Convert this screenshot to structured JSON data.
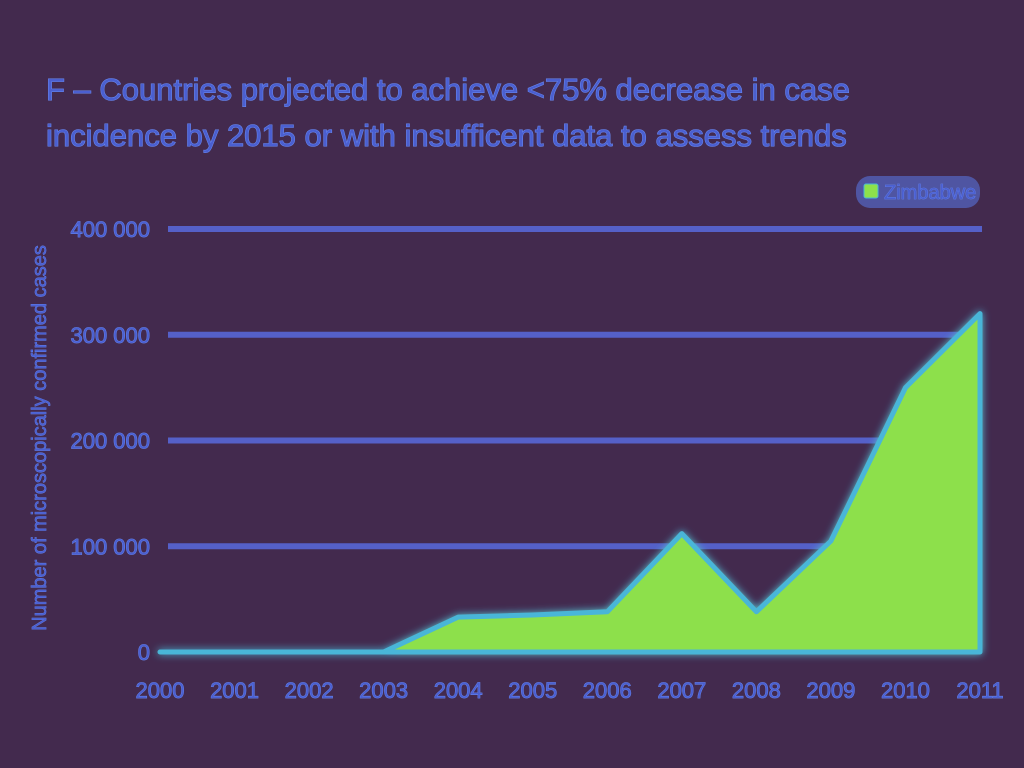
{
  "chart_data": {
    "type": "area",
    "title_lines": [
      "F – Countries projected to achieve <75% decrease in case",
      "incidence by 2015 or with insufficent data to assess trends"
    ],
    "ylabel": "Number of microscopically confirmed cases",
    "xlabel": "",
    "categories": [
      "2000",
      "2001",
      "2002",
      "2003",
      "2004",
      "2005",
      "2006",
      "2007",
      "2008",
      "2009",
      "2010",
      "2011"
    ],
    "series": [
      {
        "name": "Zimbabwe",
        "values": [
          0,
          0,
          0,
          0,
          33000,
          35000,
          38000,
          112000,
          38000,
          105000,
          250000,
          320000
        ]
      }
    ],
    "yticks": [
      0,
      100000,
      200000,
      300000,
      400000
    ],
    "ytick_labels": [
      "0",
      "100 000",
      "200 000",
      "300 000",
      "400 000"
    ],
    "ylim": [
      0,
      400000
    ],
    "grid": true,
    "legend_position": "top-right",
    "colors": {
      "background": "#432a4e",
      "area_fill": "#8de04b",
      "area_edge": "#49b6d8",
      "text": "#4b5fd0",
      "grid": "#5560c8"
    }
  }
}
